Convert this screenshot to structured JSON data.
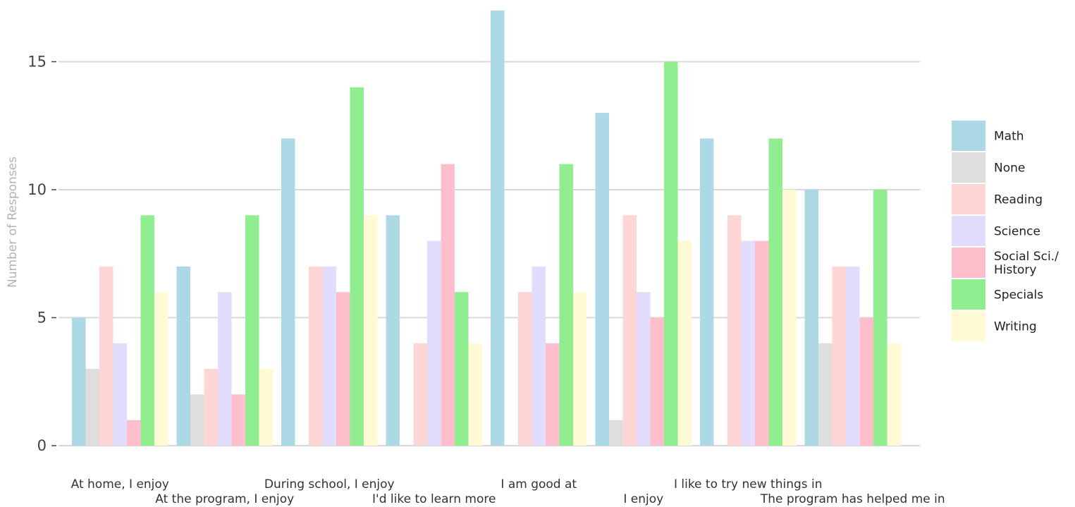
{
  "chart_data": {
    "type": "bar",
    "title": "",
    "xlabel": "",
    "ylabel": "Number of Responses",
    "ylim": [
      0,
      17
    ],
    "yticks": [
      0,
      5,
      10,
      15
    ],
    "grid": true,
    "legend_position": "right",
    "categories": [
      "At home, I enjoy",
      "At the program, I enjoy",
      "During school, I enjoy",
      "I'd like to learn more",
      "I am good at",
      "I enjoy",
      "I like to try new things in",
      "The program has helped me in"
    ],
    "series": [
      {
        "name": "Math",
        "color": "#ADD8E6",
        "values": [
          5,
          7,
          12,
          9,
          17,
          13,
          12,
          10
        ]
      },
      {
        "name": "None",
        "color": "#DEDEDE",
        "values": [
          3,
          2,
          0,
          0,
          0,
          1,
          0,
          4
        ]
      },
      {
        "name": "Reading",
        "color": "#FFD6D6",
        "values": [
          7,
          3,
          7,
          4,
          6,
          9,
          9,
          7
        ]
      },
      {
        "name": "Science",
        "color": "#E3DDFD",
        "values": [
          4,
          6,
          7,
          8,
          7,
          6,
          8,
          7
        ]
      },
      {
        "name": "Social Sci./\nHistory",
        "color": "#FFBECB",
        "values": [
          1,
          2,
          6,
          11,
          4,
          5,
          8,
          5
        ]
      },
      {
        "name": "Specials",
        "color": "#90EE90",
        "values": [
          9,
          9,
          14,
          6,
          11,
          15,
          12,
          10
        ]
      },
      {
        "name": "Writing",
        "color": "#FFFAD4",
        "values": [
          6,
          3,
          9,
          4,
          6,
          8,
          10,
          4
        ]
      }
    ]
  }
}
